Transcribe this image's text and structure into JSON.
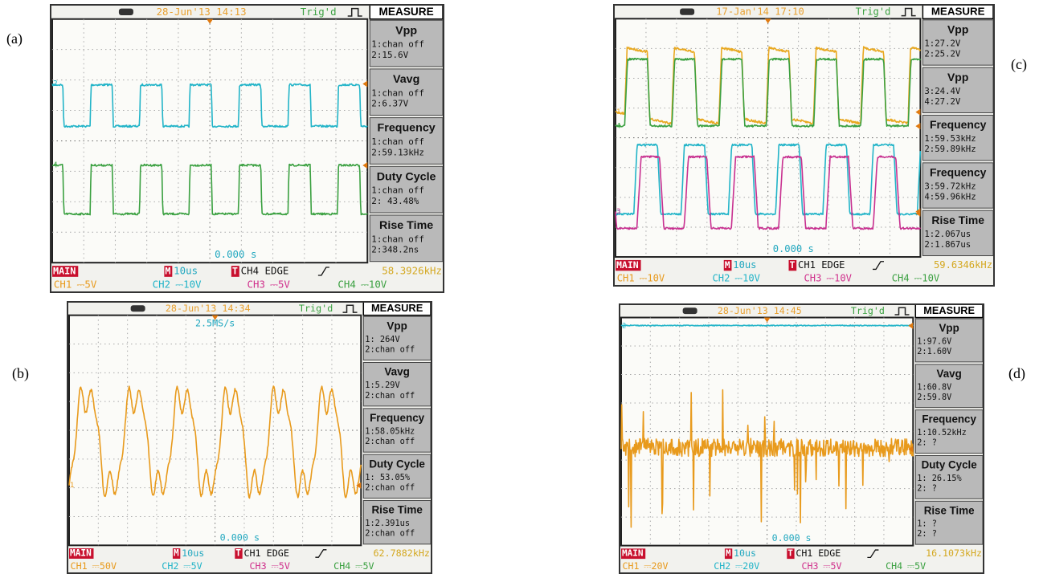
{
  "panels": [
    {
      "label": "(a)",
      "date": "28-Jun'13 14:13",
      "trig": "Trig'd",
      "measure_title": "MEASURE",
      "measurements": [
        {
          "title": "Vpp",
          "lines": [
            "1:chan off",
            "2:15.6V"
          ]
        },
        {
          "title": "Vavg",
          "lines": [
            "1:chan off",
            "2:6.37V"
          ]
        },
        {
          "title": "Frequency",
          "lines": [
            "1:chan off",
            "2:59.13kHz"
          ]
        },
        {
          "title": "Duty Cycle",
          "lines": [
            "1:chan off",
            "2: 43.48%"
          ]
        },
        {
          "title": "Rise Time",
          "lines": [
            "1:chan off",
            "2:348.2ns"
          ]
        }
      ],
      "time_readout": "0.000 s",
      "status": {
        "mode": "MAIN",
        "timebase_tag": "M",
        "timebase": "10us",
        "trigger_tag": "T",
        "trigger": "CH4 EDGE",
        "frequency": "58.3926kHz"
      },
      "channels": [
        {
          "name": "CH1",
          "scale": "⎓5V",
          "color": "#e89a1c"
        },
        {
          "name": "CH2",
          "scale": "⎓10V",
          "color": "#22b4c8"
        },
        {
          "name": "CH3",
          "scale": "⎓5V",
          "color": "#d0308c"
        },
        {
          "name": "CH4",
          "scale": "⎓10V",
          "color": "#3aa040"
        }
      ],
      "traces": [
        {
          "marker": "2",
          "color": "#22b4c8"
        },
        {
          "marker": "4",
          "color": "#3aa040"
        }
      ]
    },
    {
      "label": "(b)",
      "date": "28-Jun'13 14:34",
      "trig": "Trig'd",
      "measure_title": "MEASURE",
      "sample_rate": "2.5MS/s",
      "measurements": [
        {
          "title": "Vpp",
          "lines": [
            "1: 264V",
            "2:chan off"
          ]
        },
        {
          "title": "Vavg",
          "lines": [
            "1:5.29V",
            "2:chan off"
          ]
        },
        {
          "title": "Frequency",
          "lines": [
            "1:58.05kHz",
            "2:chan off"
          ]
        },
        {
          "title": "Duty Cycle",
          "lines": [
            "1: 53.05%",
            "2:chan off"
          ]
        },
        {
          "title": "Rise Time",
          "lines": [
            "1:2.391us",
            "2:chan off"
          ]
        }
      ],
      "time_readout": "0.000 s",
      "status": {
        "mode": "MAIN",
        "timebase_tag": "M",
        "timebase": "10us",
        "trigger_tag": "T",
        "trigger": "CH1 EDGE",
        "frequency": "62.7882kHz"
      },
      "channels": [
        {
          "name": "CH1",
          "scale": "⎓50V",
          "color": "#e89a1c"
        },
        {
          "name": "CH2",
          "scale": "⎓5V",
          "color": "#22b4c8"
        },
        {
          "name": "CH3",
          "scale": "⎓5V",
          "color": "#d0308c"
        },
        {
          "name": "CH4",
          "scale": "⎓5V",
          "color": "#3aa040"
        }
      ],
      "traces": [
        {
          "marker": "1",
          "color": "#e89a1c"
        }
      ]
    },
    {
      "label": "(c)",
      "date": "17-Jan'14 17:10",
      "trig": "Trig'd",
      "measure_title": "MEASURE",
      "measurements": [
        {
          "title": "Vpp",
          "lines": [
            "1:27.2V",
            "2:25.2V"
          ]
        },
        {
          "title": "Vpp",
          "lines": [
            "3:24.4V",
            "4:27.2V"
          ]
        },
        {
          "title": "Frequency",
          "lines": [
            "1:59.53kHz",
            "2:59.89kHz"
          ]
        },
        {
          "title": "Frequency",
          "lines": [
            "3:59.72kHz",
            "4:59.96kHz"
          ]
        },
        {
          "title": "Rise Time",
          "lines": [
            "1:2.067us",
            "2:1.867us"
          ]
        }
      ],
      "time_readout": "0.000 s",
      "status": {
        "mode": "MAIN",
        "timebase_tag": "M",
        "timebase": "10us",
        "trigger_tag": "T",
        "trigger": "CH1 EDGE",
        "frequency": "59.6346kHz"
      },
      "channels": [
        {
          "name": "CH1",
          "scale": "⎓10V",
          "color": "#e89a1c"
        },
        {
          "name": "CH2",
          "scale": "⎓10V",
          "color": "#22b4c8"
        },
        {
          "name": "CH3",
          "scale": "⎓10V",
          "color": "#d0308c"
        },
        {
          "name": "CH4",
          "scale": "⎓10V",
          "color": "#3aa040"
        }
      ],
      "traces": [
        {
          "marker": "1",
          "color": "#e8a820"
        },
        {
          "marker": "4",
          "color": "#3aa040"
        },
        {
          "marker": "2",
          "color": "#22b4c8"
        },
        {
          "marker": "3",
          "color": "#c83090"
        }
      ]
    },
    {
      "label": "(d)",
      "date": "28-Jun'13 14:45",
      "trig": "Trig'd",
      "measure_title": "MEASURE",
      "measurements": [
        {
          "title": "Vpp",
          "lines": [
            "1:97.6V",
            "2:1.60V"
          ]
        },
        {
          "title": "Vavg",
          "lines": [
            "1:60.8V",
            "2:59.8V"
          ]
        },
        {
          "title": "Frequency",
          "lines": [
            "1:10.52kHz",
            "2: ?"
          ]
        },
        {
          "title": "Duty Cycle",
          "lines": [
            "1: 26.15%",
            "2: ?"
          ]
        },
        {
          "title": "Rise Time",
          "lines": [
            "1: ?",
            "2: ?"
          ]
        }
      ],
      "time_readout": "0.000 s",
      "status": {
        "mode": "MAIN",
        "timebase_tag": "M",
        "timebase": "10us",
        "trigger_tag": "T",
        "trigger": "CH1 EDGE",
        "frequency": "16.1073kHz"
      },
      "channels": [
        {
          "name": "CH1",
          "scale": "⎓20V",
          "color": "#e89a1c"
        },
        {
          "name": "CH2",
          "scale": "⎓20V",
          "color": "#22b4c8"
        },
        {
          "name": "CH3",
          "scale": "⎓5V",
          "color": "#d0308c"
        },
        {
          "name": "CH4",
          "scale": "⎓5V",
          "color": "#3aa040"
        }
      ],
      "traces": [
        {
          "marker": "2",
          "color": "#22b4c8"
        },
        {
          "marker": "1",
          "color": "#e89a1c"
        }
      ]
    }
  ]
}
